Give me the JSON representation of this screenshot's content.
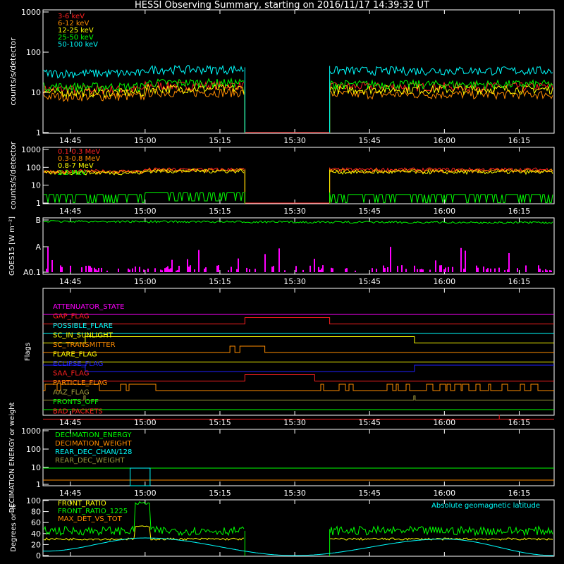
{
  "title": "HESSI Observing Summary, starting on 2016/11/17 14:39:32 UT",
  "colors": {
    "red": "#ff2020",
    "orange": "#ff8c00",
    "yellow": "#ffff00",
    "green": "#00ff00",
    "cyan": "#00ffff",
    "magenta": "#ff00ff",
    "blue": "#2020ff",
    "white": "#ffffff",
    "olive": "#a09a3c"
  },
  "time_ticks": [
    "14:45",
    "15:00",
    "15:15",
    "15:30",
    "15:45",
    "16:00",
    "16:15"
  ],
  "chart_data": [
    {
      "type": "line",
      "panel": "low-energy-rates",
      "ylabel": "counts/s/detector",
      "y_scale": "log",
      "ylim": [
        1,
        1000
      ],
      "y_ticks": [
        "1000",
        "100",
        "10",
        "1"
      ],
      "x_range_minutes_label": [
        "14:39:32",
        "16:22"
      ],
      "gap": [
        "15:20",
        "15:37"
      ],
      "series": [
        {
          "name": "3-6 keV",
          "color": "#ff2020",
          "level_before": 12,
          "level_after": 14
        },
        {
          "name": "6-12 keV",
          "color": "#ff8c00",
          "level_before": 8,
          "level_after": 9
        },
        {
          "name": "12-25 keV",
          "color": "#ffff00",
          "level_before": 10,
          "level_after": 12
        },
        {
          "name": "25-50 keV",
          "color": "#00ff00",
          "level_before": 14,
          "level_after": 16
        },
        {
          "name": "50-100 keV",
          "color": "#00ffff",
          "level_before": 30,
          "level_after": 35
        }
      ]
    },
    {
      "type": "line",
      "panel": "high-energy-rates",
      "ylabel": "counts/s/detector",
      "y_scale": "log",
      "ylim": [
        1,
        1000
      ],
      "y_ticks": [
        "1000",
        "100",
        "10",
        "1"
      ],
      "series": [
        {
          "name": "0.1-0.3 MeV",
          "color": "#ff2020",
          "level_before": 60,
          "level_after": 75
        },
        {
          "name": "0.3-0.8 MeV",
          "color": "#ff8c00",
          "level_before": 55,
          "level_after": 65
        },
        {
          "name": "0.8-7 MeV",
          "color": "#ffff00",
          "level_before": 50,
          "level_after": 55
        },
        {
          "name": "2.2 MeV",
          "color": "#00ff00",
          "level_before": 3,
          "level_after": 3
        }
      ]
    },
    {
      "type": "line",
      "panel": "goes",
      "ylabel": "GOES15 [W m⁻²]",
      "y_ticks": [
        "B",
        "A",
        "A0.1"
      ],
      "series": [
        {
          "name": "GOES long",
          "color": "#00ff00"
        },
        {
          "name": "GOES short",
          "color": "#ff00ff"
        }
      ]
    },
    {
      "type": "table",
      "panel": "flags",
      "ylabel": "Flags",
      "flags": [
        {
          "name": "ATTENUATOR_STATE",
          "color": "#ff00ff"
        },
        {
          "name": "GAP_FLAG",
          "color": "#ff2020"
        },
        {
          "name": "POSSIBLE_FLARE",
          "color": "#00ffff"
        },
        {
          "name": "SC_IN_SUNLIGHT",
          "color": "#ffff00"
        },
        {
          "name": "SC_TRANSMITTER",
          "color": "#ff8c00"
        },
        {
          "name": "FLARE_FLAG",
          "color": "#ffff00"
        },
        {
          "name": "ECLIPSE_FLAG",
          "color": "#2020ff"
        },
        {
          "name": "SAA_FLAG",
          "color": "#ff2020"
        },
        {
          "name": "PARTICLE_FLAG",
          "color": "#ff8c00"
        },
        {
          "name": "AAZ_FLAG",
          "color": "#a09a3c"
        },
        {
          "name": "FRONTS_OFF",
          "color": "#00ff00"
        },
        {
          "name": "BAD_PACKETS",
          "color": "#ff2020"
        }
      ]
    },
    {
      "type": "line",
      "panel": "decimation",
      "ylabel": "DECIMATION ENERGY or weight",
      "y_ticks": [
        "1000",
        "100",
        "10",
        "1"
      ],
      "series": [
        {
          "name": "DECIMATION_ENERGY",
          "color": "#00ff00"
        },
        {
          "name": "DECIMATION_WEIGHT",
          "color": "#ff8c00"
        },
        {
          "name": "REAR_DEC_CHAN/128",
          "color": "#00ffff"
        },
        {
          "name": "REAR_DEC_WEIGHT",
          "color": "#a09a3c"
        }
      ]
    },
    {
      "type": "line",
      "panel": "ratios",
      "ylabel": "Degrees or %",
      "ylim": [
        0,
        100
      ],
      "y_ticks": [
        "100",
        "80",
        "60",
        "40",
        "20",
        "0"
      ],
      "annotation": "Absolute geomagnetic latitude",
      "series": [
        {
          "name": "FRONT_RATIO",
          "color": "#ffff00"
        },
        {
          "name": "FRONT_RATIO_1225",
          "color": "#00ff00"
        },
        {
          "name": "MAX_DET_VS_TOT",
          "color": "#ff8c00"
        }
      ]
    }
  ]
}
